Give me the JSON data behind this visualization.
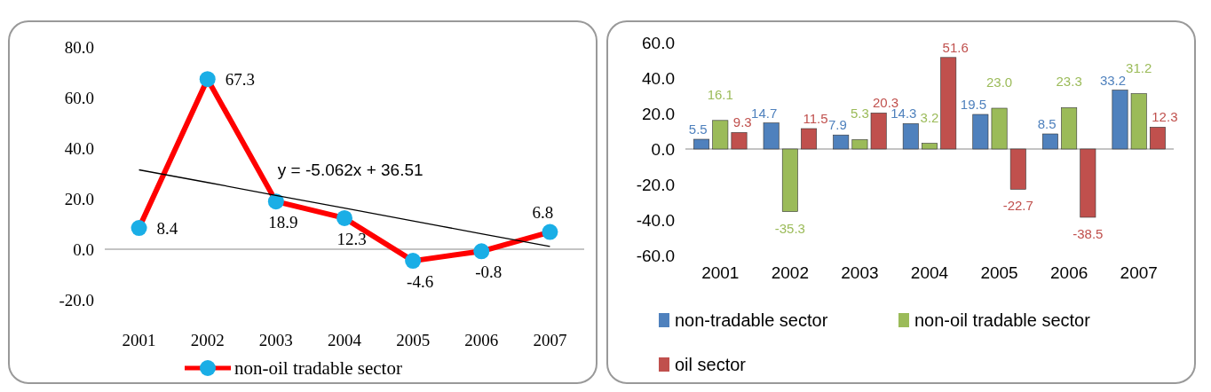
{
  "chart_data": [
    {
      "type": "line",
      "categories": [
        "2001",
        "2002",
        "2003",
        "2004",
        "2005",
        "2006",
        "2007"
      ],
      "ylim": [
        -20,
        80
      ],
      "yticks": [
        {
          "value": -20,
          "label": "-20.0"
        },
        {
          "value": 0,
          "label": "0.0"
        },
        {
          "value": 20,
          "label": "20.0"
        },
        {
          "value": 40,
          "label": "40.0"
        },
        {
          "value": 60,
          "label": "60.0"
        },
        {
          "value": 80,
          "label": "80.0"
        }
      ],
      "legend": "bottom",
      "line_style": "solid",
      "series": [
        {
          "type": "line",
          "marker": "circle",
          "name": "non-oil tradable sector",
          "color": "#ff0000",
          "colors": [
            "#1aaee6",
            "#1aaee6",
            "#1aaee6",
            "#1aaee6",
            "#1aaee6",
            "#1aaee6",
            "#1aaee6"
          ],
          "values": [
            8.4,
            67.3,
            18.9,
            12.3,
            -4.6,
            -0.8,
            6.8
          ],
          "value_labels": [
            "8.4",
            "67.3",
            "18.9",
            "12.3",
            "-4.6",
            "-0.8",
            "6.8"
          ]
        },
        {
          "type": "line",
          "marker": "none",
          "color": "#000000",
          "values": [
            31.4,
            26.4,
            21.3,
            16.3,
            11.2,
            6.1,
            1.1
          ]
        }
      ],
      "annotations": [
        "y = -5.062x + 36.51"
      ]
    },
    {
      "type": "bar",
      "categories": [
        "2001",
        "2002",
        "2003",
        "2004",
        "2005",
        "2006",
        "2007"
      ],
      "ylim": [
        -60,
        60
      ],
      "yticks": [
        {
          "value": -60,
          "label": "-60.0"
        },
        {
          "value": -40,
          "label": "-40.0"
        },
        {
          "value": -20,
          "label": "-20.0"
        },
        {
          "value": 0,
          "label": "0.0"
        },
        {
          "value": 20,
          "label": "20.0"
        },
        {
          "value": 40,
          "label": "40.0"
        },
        {
          "value": 60,
          "label": "60.0"
        }
      ],
      "legend": "bottom",
      "series": [
        {
          "name": "non-tradable sector",
          "color": "#4f81bd",
          "values": [
            5.5,
            14.7,
            7.9,
            14.3,
            19.5,
            8.5,
            33.2
          ],
          "value_labels": [
            "5.5",
            "14.7",
            "7.9",
            "14.3",
            "19.5",
            "8.5",
            "33.2"
          ]
        },
        {
          "name": "non-oil tradable sector",
          "color": "#9bbb59",
          "values": [
            16.1,
            -35.3,
            5.3,
            3.2,
            23.0,
            23.3,
            31.2
          ],
          "value_labels": [
            "16.1",
            "-35.3",
            "5.3",
            "3.2",
            "23.0",
            "23.3",
            "31.2"
          ]
        },
        {
          "name": "oil sector",
          "color": "#c0504d",
          "values": [
            9.3,
            11.5,
            20.3,
            51.6,
            -22.7,
            -38.5,
            12.3
          ],
          "value_labels": [
            "9.3",
            "11.5",
            "20.3",
            "51.6",
            "-22.7",
            "-38.5",
            "12.3"
          ]
        }
      ]
    }
  ]
}
